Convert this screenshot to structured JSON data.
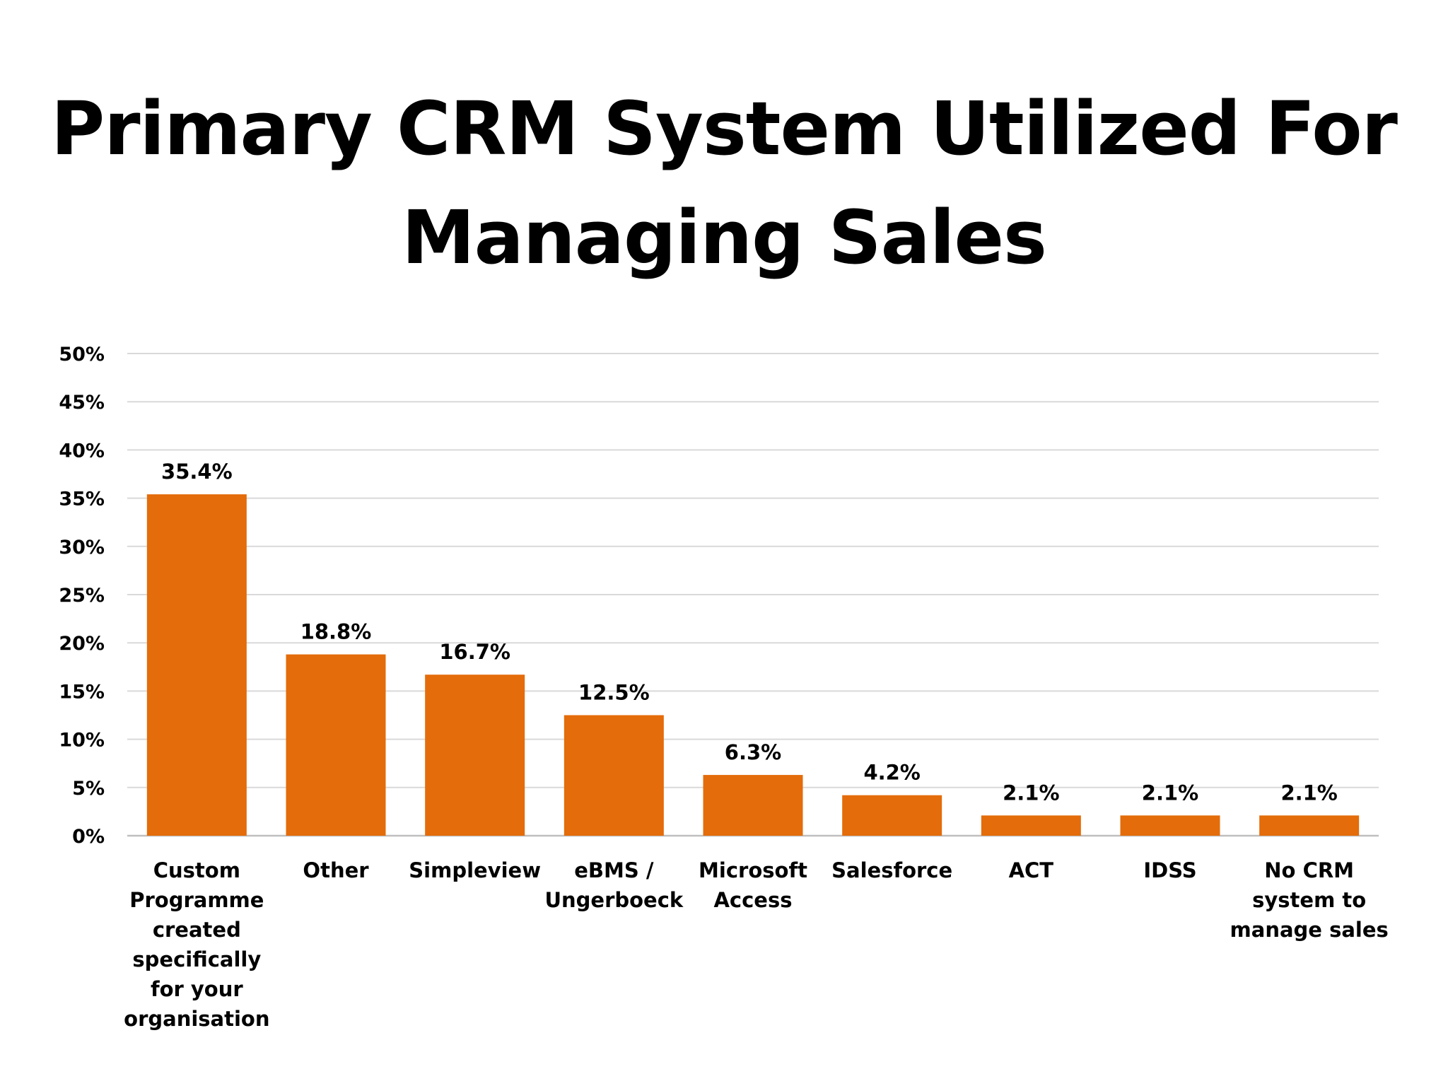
{
  "chart_data": {
    "type": "bar",
    "title_lines": [
      "Primary CRM System Utilized For",
      "Managing Sales"
    ],
    "xlabel": "",
    "ylabel": "",
    "ylim": [
      0,
      50
    ],
    "y_ticks": [
      "0%",
      "5%",
      "10%",
      "15%",
      "20%",
      "25%",
      "30%",
      "35%",
      "40%",
      "45%",
      "50%"
    ],
    "grid": true,
    "legend": "none",
    "bar_color": "#E46C0A",
    "categories": [
      [
        "Custom",
        "Programme",
        "created",
        "specifically",
        "for your",
        "organisation"
      ],
      [
        "Other"
      ],
      [
        "Simpleview"
      ],
      [
        "eBMS /",
        "Ungerboeck"
      ],
      [
        "Microsoft",
        "Access"
      ],
      [
        "Salesforce"
      ],
      [
        "ACT"
      ],
      [
        "IDSS"
      ],
      [
        "No CRM",
        "system to",
        "manage sales"
      ]
    ],
    "values": [
      35.4,
      18.8,
      16.7,
      12.5,
      6.3,
      4.2,
      2.1,
      2.1,
      2.1
    ],
    "data_labels": [
      "35.4%",
      "18.8%",
      "16.7%",
      "12.5%",
      "6.3%",
      "4.2%",
      "2.1%",
      "2.1%",
      "2.1%"
    ]
  }
}
